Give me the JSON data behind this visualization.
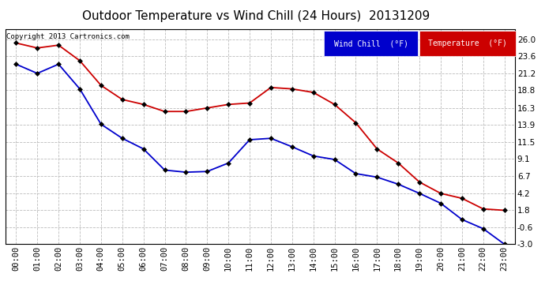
{
  "title": "Outdoor Temperature vs Wind Chill (24 Hours)  20131209",
  "copyright": "Copyright 2013 Cartronics.com",
  "x_labels": [
    "00:00",
    "01:00",
    "02:00",
    "03:00",
    "04:00",
    "05:00",
    "06:00",
    "07:00",
    "08:00",
    "09:00",
    "10:00",
    "11:00",
    "12:00",
    "13:00",
    "14:00",
    "15:00",
    "16:00",
    "17:00",
    "18:00",
    "19:00",
    "20:00",
    "21:00",
    "22:00",
    "23:00"
  ],
  "temperature": [
    25.5,
    24.8,
    25.2,
    23.0,
    19.5,
    17.5,
    16.8,
    15.8,
    15.8,
    16.3,
    16.8,
    17.0,
    19.2,
    19.0,
    18.5,
    16.8,
    14.2,
    10.5,
    8.5,
    5.8,
    4.2,
    3.5,
    2.0,
    1.8
  ],
  "wind_chill": [
    22.5,
    21.2,
    22.5,
    19.0,
    14.0,
    12.0,
    10.5,
    7.5,
    7.2,
    7.3,
    8.5,
    11.8,
    12.0,
    10.8,
    9.5,
    9.0,
    7.0,
    6.5,
    5.5,
    4.2,
    2.8,
    0.5,
    -0.8,
    -3.0
  ],
  "temp_color": "#cc0000",
  "wind_chill_color": "#0000cc",
  "marker": "D",
  "marker_size": 3.0,
  "line_width": 1.3,
  "ylim_min": -3.0,
  "ylim_max": 27.4,
  "y_ticks": [
    -3.0,
    -0.6,
    1.8,
    4.2,
    6.7,
    9.1,
    11.5,
    13.9,
    16.3,
    18.8,
    21.2,
    23.6,
    26.0
  ],
  "background_color": "#ffffff",
  "plot_bg_color": "#ffffff",
  "grid_color": "#bbbbbb",
  "title_fontsize": 11,
  "tick_fontsize": 7.5,
  "legend_wind_chill_bg": "#0000cc",
  "legend_temp_bg": "#cc0000",
  "legend_text_color": "#ffffff",
  "figwidth": 6.9,
  "figheight": 3.75,
  "dpi": 100
}
